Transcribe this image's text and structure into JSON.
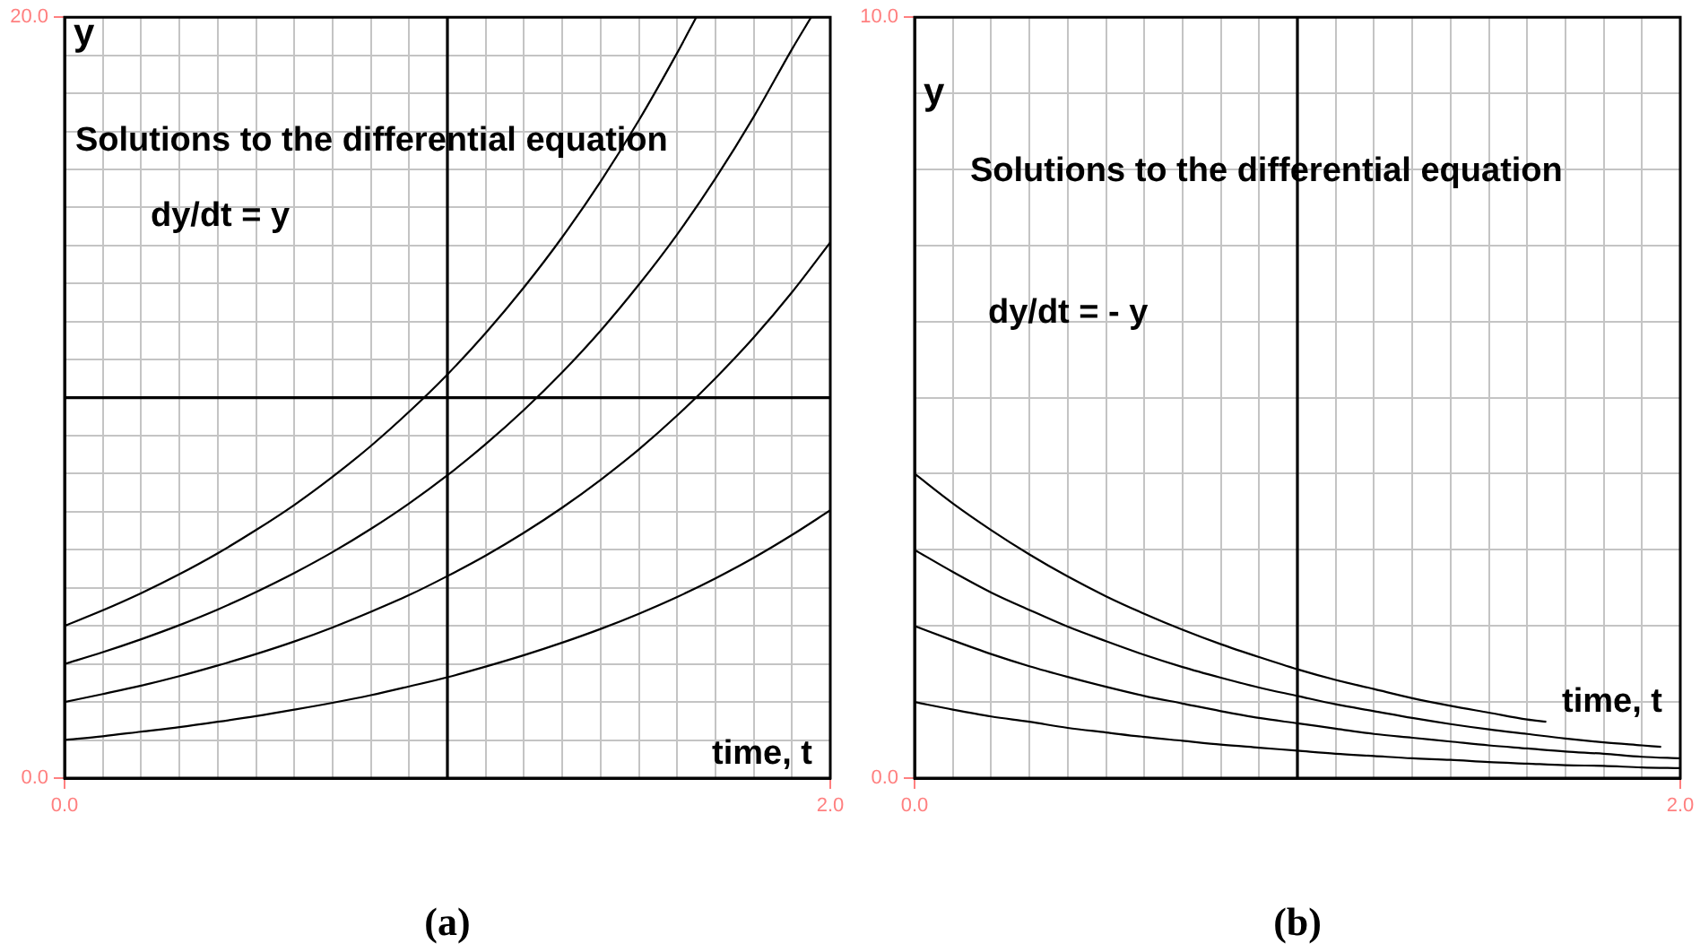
{
  "chart_data": [
    {
      "type": "line",
      "title": "Solutions to the differential equation",
      "subtitle": "dy/dt = y",
      "xlabel": "time, t",
      "ylabel": "y",
      "annotations": [
        "(a)"
      ],
      "xlim": [
        0,
        2
      ],
      "ylim": [
        0,
        20
      ],
      "xticks": [
        {
          "value": 0,
          "label": "0.0"
        },
        {
          "value": 0.1,
          "label": null
        },
        {
          "value": 0.2,
          "label": null
        },
        {
          "value": 0.3,
          "label": null
        },
        {
          "value": 0.4,
          "label": null
        },
        {
          "value": 0.5,
          "label": null
        },
        {
          "value": 0.6,
          "label": null
        },
        {
          "value": 0.7,
          "label": null
        },
        {
          "value": 0.8,
          "label": null
        },
        {
          "value": 0.9,
          "label": null
        },
        {
          "value": 1,
          "label": null
        },
        {
          "value": 1.1,
          "label": null
        },
        {
          "value": 1.2,
          "label": null
        },
        {
          "value": 1.3,
          "label": null
        },
        {
          "value": 1.4,
          "label": null
        },
        {
          "value": 1.5,
          "label": null
        },
        {
          "value": 1.6,
          "label": null
        },
        {
          "value": 1.7,
          "label": null
        },
        {
          "value": 1.8,
          "label": null
        },
        {
          "value": 1.9,
          "label": null
        },
        {
          "value": 2,
          "label": "2.0"
        }
      ],
      "yticks": [
        {
          "value": 0,
          "label": "0.0"
        },
        {
          "value": 1,
          "label": null
        },
        {
          "value": 2,
          "label": null
        },
        {
          "value": 3,
          "label": null
        },
        {
          "value": 4,
          "label": null
        },
        {
          "value": 5,
          "label": null
        },
        {
          "value": 6,
          "label": null
        },
        {
          "value": 7,
          "label": null
        },
        {
          "value": 8,
          "label": null
        },
        {
          "value": 9,
          "label": null
        },
        {
          "value": 10,
          "label": null
        },
        {
          "value": 11,
          "label": null
        },
        {
          "value": 12,
          "label": null
        },
        {
          "value": 13,
          "label": null
        },
        {
          "value": 14,
          "label": null
        },
        {
          "value": 15,
          "label": null
        },
        {
          "value": 16,
          "label": null
        },
        {
          "value": 17,
          "label": null
        },
        {
          "value": 18,
          "label": null
        },
        {
          "value": 19,
          "label": null
        },
        {
          "value": 20,
          "label": "20.0"
        }
      ],
      "grid": true,
      "marker": "none",
      "line_style": "solid",
      "ref_lines": [
        {
          "axis": "x",
          "value": 1,
          "color": "#000000"
        },
        {
          "axis": "y",
          "value": 10,
          "color": "#000000"
        }
      ],
      "series": [
        {
          "color": "#000000",
          "x": [
            0,
            0.1,
            0.2,
            0.3,
            0.4,
            0.5,
            0.6,
            0.7,
            0.8,
            0.9,
            1,
            1.1,
            1.2,
            1.3,
            1.4,
            1.5,
            1.6,
            1.7,
            1.8,
            1.9,
            2
          ],
          "values": [
            1,
            1.1,
            1.22,
            1.34,
            1.48,
            1.63,
            1.8,
            1.98,
            2.18,
            2.41,
            2.65,
            2.93,
            3.23,
            3.56,
            3.92,
            4.32,
            4.76,
            5.25,
            5.79,
            6.39,
            7.04
          ]
        },
        {
          "color": "#000000",
          "x": [
            0,
            0.1,
            0.2,
            0.3,
            0.4,
            0.5,
            0.6,
            0.7,
            0.8,
            0.9,
            1,
            1.1,
            1.2,
            1.3,
            1.4,
            1.5,
            1.6,
            1.7,
            1.8,
            1.9,
            2
          ],
          "values": [
            2,
            2.21,
            2.43,
            2.68,
            2.96,
            3.26,
            3.59,
            3.96,
            4.37,
            4.81,
            5.31,
            5.85,
            6.45,
            7.11,
            7.84,
            8.64,
            9.53,
            10.51,
            11.58,
            12.77,
            14.08
          ]
        },
        {
          "color": "#000000",
          "x": [
            0,
            0.1,
            0.2,
            0.3,
            0.4,
            0.5,
            0.6,
            0.7,
            0.8,
            0.9,
            1,
            1.1,
            1.2,
            1.3,
            1.4,
            1.5,
            1.6,
            1.7,
            1.8,
            1.9,
            1.95
          ],
          "values": [
            3,
            3.31,
            3.65,
            4.02,
            4.43,
            4.89,
            5.39,
            5.94,
            6.55,
            7.22,
            7.96,
            8.78,
            9.68,
            10.67,
            11.76,
            12.97,
            14.29,
            15.76,
            17.38,
            19.16,
            20
          ]
        },
        {
          "color": "#000000",
          "x": [
            0,
            0.1,
            0.2,
            0.3,
            0.4,
            0.5,
            0.6,
            0.7,
            0.8,
            0.9,
            1,
            1.1,
            1.2,
            1.3,
            1.4,
            1.5,
            1.6,
            1.65
          ],
          "values": [
            4,
            4.41,
            4.86,
            5.36,
            5.91,
            6.52,
            7.18,
            7.92,
            8.73,
            9.63,
            10.61,
            11.7,
            12.9,
            14.22,
            15.68,
            17.29,
            19.06,
            20
          ]
        }
      ]
    },
    {
      "type": "line",
      "title": "Solutions to the differential equation",
      "subtitle": "dy/dt = - y",
      "xlabel": "time, t",
      "ylabel": "y",
      "annotations": [
        "(b)"
      ],
      "xlim": [
        0,
        2
      ],
      "ylim": [
        0,
        10
      ],
      "xticks": [
        {
          "value": 0,
          "label": "0.0"
        },
        {
          "value": 0.1,
          "label": null
        },
        {
          "value": 0.2,
          "label": null
        },
        {
          "value": 0.3,
          "label": null
        },
        {
          "value": 0.4,
          "label": null
        },
        {
          "value": 0.5,
          "label": null
        },
        {
          "value": 0.6,
          "label": null
        },
        {
          "value": 0.7,
          "label": null
        },
        {
          "value": 0.8,
          "label": null
        },
        {
          "value": 0.9,
          "label": null
        },
        {
          "value": 1,
          "label": null
        },
        {
          "value": 1.1,
          "label": null
        },
        {
          "value": 1.2,
          "label": null
        },
        {
          "value": 1.3,
          "label": null
        },
        {
          "value": 1.4,
          "label": null
        },
        {
          "value": 1.5,
          "label": null
        },
        {
          "value": 1.6,
          "label": null
        },
        {
          "value": 1.7,
          "label": null
        },
        {
          "value": 1.8,
          "label": null
        },
        {
          "value": 1.9,
          "label": null
        },
        {
          "value": 2,
          "label": "2.0"
        }
      ],
      "yticks": [
        {
          "value": 0,
          "label": "0.0"
        },
        {
          "value": 1,
          "label": null
        },
        {
          "value": 2,
          "label": null
        },
        {
          "value": 3,
          "label": null
        },
        {
          "value": 4,
          "label": null
        },
        {
          "value": 5,
          "label": null
        },
        {
          "value": 6,
          "label": null
        },
        {
          "value": 7,
          "label": null
        },
        {
          "value": 8,
          "label": null
        },
        {
          "value": 9,
          "label": null
        },
        {
          "value": 10,
          "label": "10.0"
        }
      ],
      "grid": true,
      "marker": "none",
      "line_style": "solid",
      "ref_lines": [
        {
          "axis": "x",
          "value": 1,
          "color": "#000000"
        }
      ],
      "series": [
        {
          "color": "#000000",
          "x": [
            0,
            0.1,
            0.2,
            0.3,
            0.4,
            0.5,
            0.6,
            0.7,
            0.8,
            0.9,
            1,
            1.1,
            1.2,
            1.3,
            1.4,
            1.5,
            1.6,
            1.65
          ],
          "values": [
            4,
            3.61,
            3.26,
            2.94,
            2.65,
            2.39,
            2.16,
            1.95,
            1.76,
            1.59,
            1.43,
            1.29,
            1.17,
            1.05,
            0.95,
            0.86,
            0.77,
            0.74
          ]
        },
        {
          "color": "#000000",
          "x": [
            0,
            0.1,
            0.2,
            0.3,
            0.4,
            0.5,
            0.6,
            0.7,
            0.8,
            0.9,
            1,
            1.1,
            1.2,
            1.3,
            1.4,
            1.5,
            1.6,
            1.7,
            1.8,
            1.9,
            1.95
          ],
          "values": [
            3,
            2.71,
            2.44,
            2.21,
            1.99,
            1.8,
            1.62,
            1.46,
            1.32,
            1.19,
            1.08,
            0.97,
            0.88,
            0.79,
            0.71,
            0.64,
            0.58,
            0.52,
            0.47,
            0.43,
            0.41
          ]
        },
        {
          "color": "#000000",
          "x": [
            0,
            0.1,
            0.2,
            0.3,
            0.4,
            0.5,
            0.6,
            0.7,
            0.8,
            0.9,
            1,
            1.1,
            1.2,
            1.3,
            1.4,
            1.5,
            1.6,
            1.7,
            1.8,
            1.9,
            2
          ],
          "values": [
            2,
            1.81,
            1.63,
            1.47,
            1.33,
            1.2,
            1.08,
            0.98,
            0.88,
            0.79,
            0.72,
            0.65,
            0.58,
            0.53,
            0.48,
            0.43,
            0.39,
            0.35,
            0.32,
            0.28,
            0.26
          ]
        },
        {
          "color": "#000000",
          "x": [
            0,
            0.1,
            0.2,
            0.3,
            0.4,
            0.5,
            0.6,
            0.7,
            0.8,
            0.9,
            1,
            1.1,
            1.2,
            1.3,
            1.4,
            1.5,
            1.6,
            1.7,
            1.8,
            1.9,
            2
          ],
          "values": [
            1,
            0.9,
            0.81,
            0.74,
            0.66,
            0.6,
            0.54,
            0.49,
            0.44,
            0.4,
            0.36,
            0.32,
            0.29,
            0.26,
            0.24,
            0.21,
            0.19,
            0.17,
            0.16,
            0.14,
            0.13
          ]
        }
      ]
    }
  ]
}
